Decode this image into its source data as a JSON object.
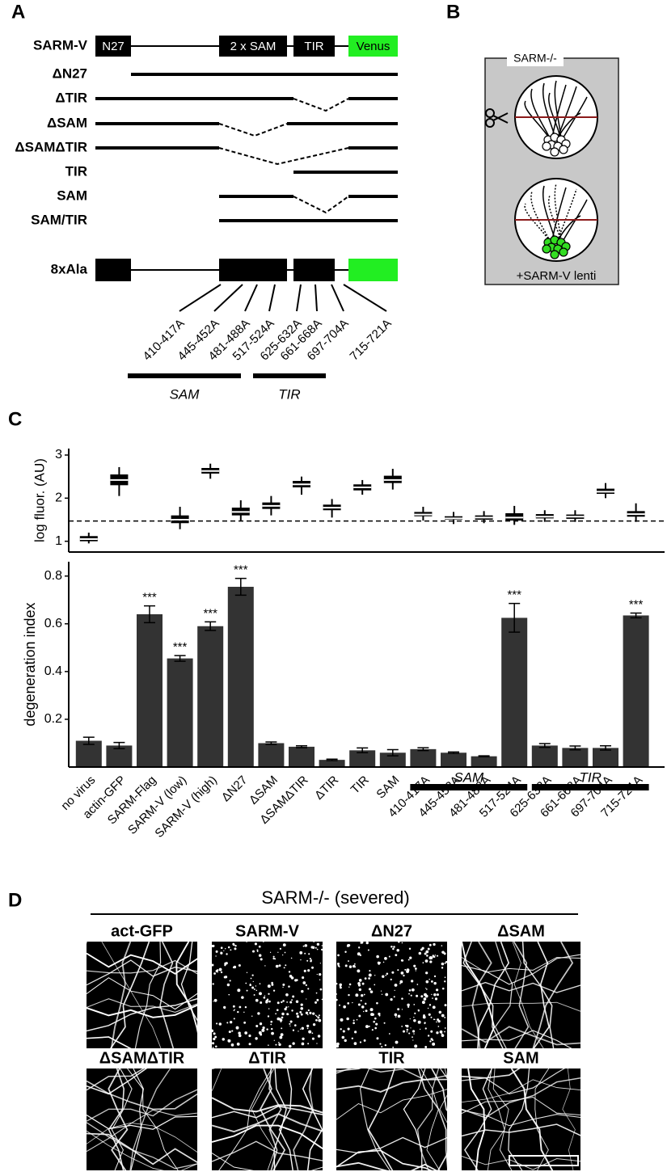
{
  "panel_labels": [
    "A",
    "B",
    "C",
    "D"
  ],
  "panel_a": {
    "constructs": [
      "SARM-V",
      "ΔN27",
      "ΔTIR",
      "ΔSAM",
      "ΔSAMΔTIR",
      "TIR",
      "SAM",
      "SAM/TIR"
    ],
    "domains": [
      "N27",
      "2 x SAM",
      "TIR",
      "Venus"
    ],
    "mutant": "8xAla",
    "mutations": [
      "410-417A",
      "445-452A",
      "481-488A",
      "517-524A",
      "625-632A",
      "661-668A",
      "697-704A",
      "715-721A"
    ],
    "groups": [
      "SAM",
      "TIR"
    ]
  },
  "panel_b": {
    "genotype": "SARM-/-",
    "treatment": "+SARM-V lenti"
  },
  "chart_data": [
    {
      "type": "box",
      "ylabel": "log fluor. (AU)",
      "color": "#000000",
      "low": [
        0.95,
        2.05,
        null,
        1.28,
        2.45,
        1.48,
        1.6,
        2.08,
        1.55,
        2.08,
        2.2,
        1.48,
        1.4,
        1.42,
        1.38,
        1.45,
        1.45,
        2.0,
        1.45
      ],
      "q1": [
        1.0,
        2.3,
        null,
        1.42,
        2.57,
        1.6,
        1.75,
        2.25,
        1.72,
        2.18,
        2.35,
        1.58,
        1.5,
        1.5,
        1.48,
        1.53,
        1.52,
        2.1,
        1.57
      ],
      "median": [
        1.05,
        2.42,
        null,
        1.5,
        2.63,
        1.68,
        1.82,
        2.32,
        1.78,
        2.25,
        2.42,
        1.62,
        1.53,
        1.55,
        1.55,
        1.57,
        1.57,
        2.15,
        1.63
      ],
      "q3": [
        1.12,
        2.55,
        null,
        1.6,
        2.7,
        1.78,
        1.9,
        2.4,
        1.85,
        2.32,
        2.52,
        1.68,
        1.58,
        1.6,
        1.65,
        1.63,
        1.62,
        2.22,
        1.7
      ],
      "high": [
        1.2,
        2.72,
        null,
        1.8,
        2.8,
        1.95,
        2.05,
        2.5,
        1.98,
        2.42,
        2.68,
        1.8,
        1.68,
        1.7,
        1.82,
        1.72,
        1.72,
        2.35,
        1.88
      ],
      "threshold": 1.47,
      "ylim": [
        0.75,
        3.15
      ],
      "yticks": [
        1,
        2,
        3
      ]
    },
    {
      "type": "bar",
      "ylabel": "degeneration index",
      "color": "#333333",
      "categories": [
        "no virus",
        "actin-GFP",
        "SARM-Flag",
        "SARM-V (low)",
        "SARM-V (high)",
        "ΔN27",
        "ΔSAM",
        "ΔSAMΔTIR",
        "ΔTIR",
        "TIR",
        "SAM",
        "410-417A",
        "445-452A",
        "481-488A",
        "517-524A",
        "625-632A",
        "661-668A",
        "697-704A",
        "715-721A"
      ],
      "values": [
        0.11,
        0.09,
        0.64,
        0.455,
        0.59,
        0.755,
        0.1,
        0.085,
        0.03,
        0.07,
        0.06,
        0.075,
        0.06,
        0.045,
        0.625,
        0.09,
        0.08,
        0.08,
        0.635
      ],
      "errors": [
        0.015,
        0.013,
        0.035,
        0.012,
        0.018,
        0.035,
        0.005,
        0.004,
        0.003,
        0.01,
        0.013,
        0.006,
        0.003,
        0.002,
        0.06,
        0.008,
        0.008,
        0.009,
        0.01
      ],
      "significance": [
        null,
        null,
        "***",
        "***",
        "***",
        "***",
        null,
        null,
        null,
        null,
        null,
        null,
        null,
        null,
        "***",
        null,
        null,
        null,
        "***"
      ],
      "groups": [
        {
          "label": "SAM",
          "from": 11,
          "to": 14
        },
        {
          "label": "TIR",
          "from": 15,
          "to": 18
        }
      ],
      "ylim": [
        0,
        0.86
      ],
      "yticks": [
        0.2,
        0.4,
        0.6,
        0.8
      ]
    }
  ],
  "panel_d": {
    "title": "SARM-/- (severed)",
    "images": [
      "act-GFP",
      "SARM-V",
      "ΔN27",
      "ΔSAM",
      "ΔSAMΔTIR",
      "ΔTIR",
      "TIR",
      "SAM"
    ]
  }
}
